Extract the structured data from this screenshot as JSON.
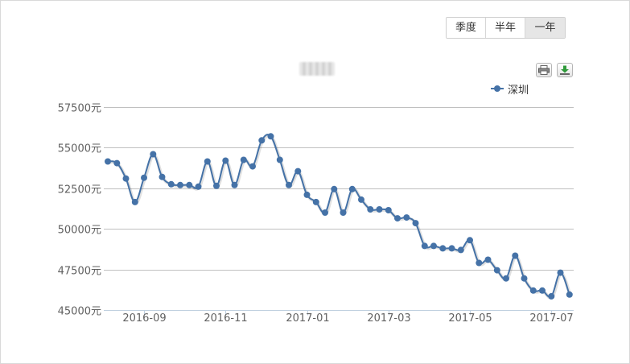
{
  "toolbar": {
    "period_buttons": [
      {
        "label": "季度",
        "active": false
      },
      {
        "label": "半年",
        "active": false
      },
      {
        "label": "一年",
        "active": true
      }
    ],
    "print_icon": "printer-icon",
    "download_icon": "download-icon"
  },
  "colors": {
    "series": "#4572a7",
    "grid": "#c0c0c0",
    "axis_line": "#c0d0e0",
    "active_button": "#e6e6e6"
  },
  "chart_data": {
    "type": "line",
    "title": "",
    "legend_position": "top-right",
    "grid": true,
    "ylim": [
      45000,
      57500
    ],
    "y_ticks": [
      {
        "value": 57500,
        "label": "57500元"
      },
      {
        "value": 55000,
        "label": "55000元"
      },
      {
        "value": 52500,
        "label": "52500元"
      },
      {
        "value": 50000,
        "label": "50000元"
      },
      {
        "value": 47500,
        "label": "47500元"
      },
      {
        "value": 45000,
        "label": "45000元"
      }
    ],
    "x_ticks": [
      {
        "index": 4,
        "label": "2016-09"
      },
      {
        "index": 13,
        "label": "2016-11"
      },
      {
        "index": 22,
        "label": "2017-01"
      },
      {
        "index": 31,
        "label": "2017-03"
      },
      {
        "index": 40,
        "label": "2017-05"
      },
      {
        "index": 49,
        "label": "2017-07"
      }
    ],
    "series": [
      {
        "name": "深圳",
        "values": [
          54150,
          54050,
          53100,
          51650,
          53150,
          54600,
          53200,
          52750,
          52700,
          52700,
          52600,
          54150,
          52650,
          54200,
          52700,
          54250,
          53850,
          55450,
          55700,
          54250,
          52700,
          53550,
          52100,
          51650,
          51000,
          52450,
          51000,
          52450,
          51800,
          51200,
          51200,
          51150,
          50650,
          50700,
          50350,
          48950,
          48950,
          48800,
          48800,
          48700,
          49300,
          47900,
          48100,
          47450,
          46950,
          48350,
          46950,
          46200,
          46200,
          45850,
          47300,
          45950
        ]
      }
    ]
  }
}
